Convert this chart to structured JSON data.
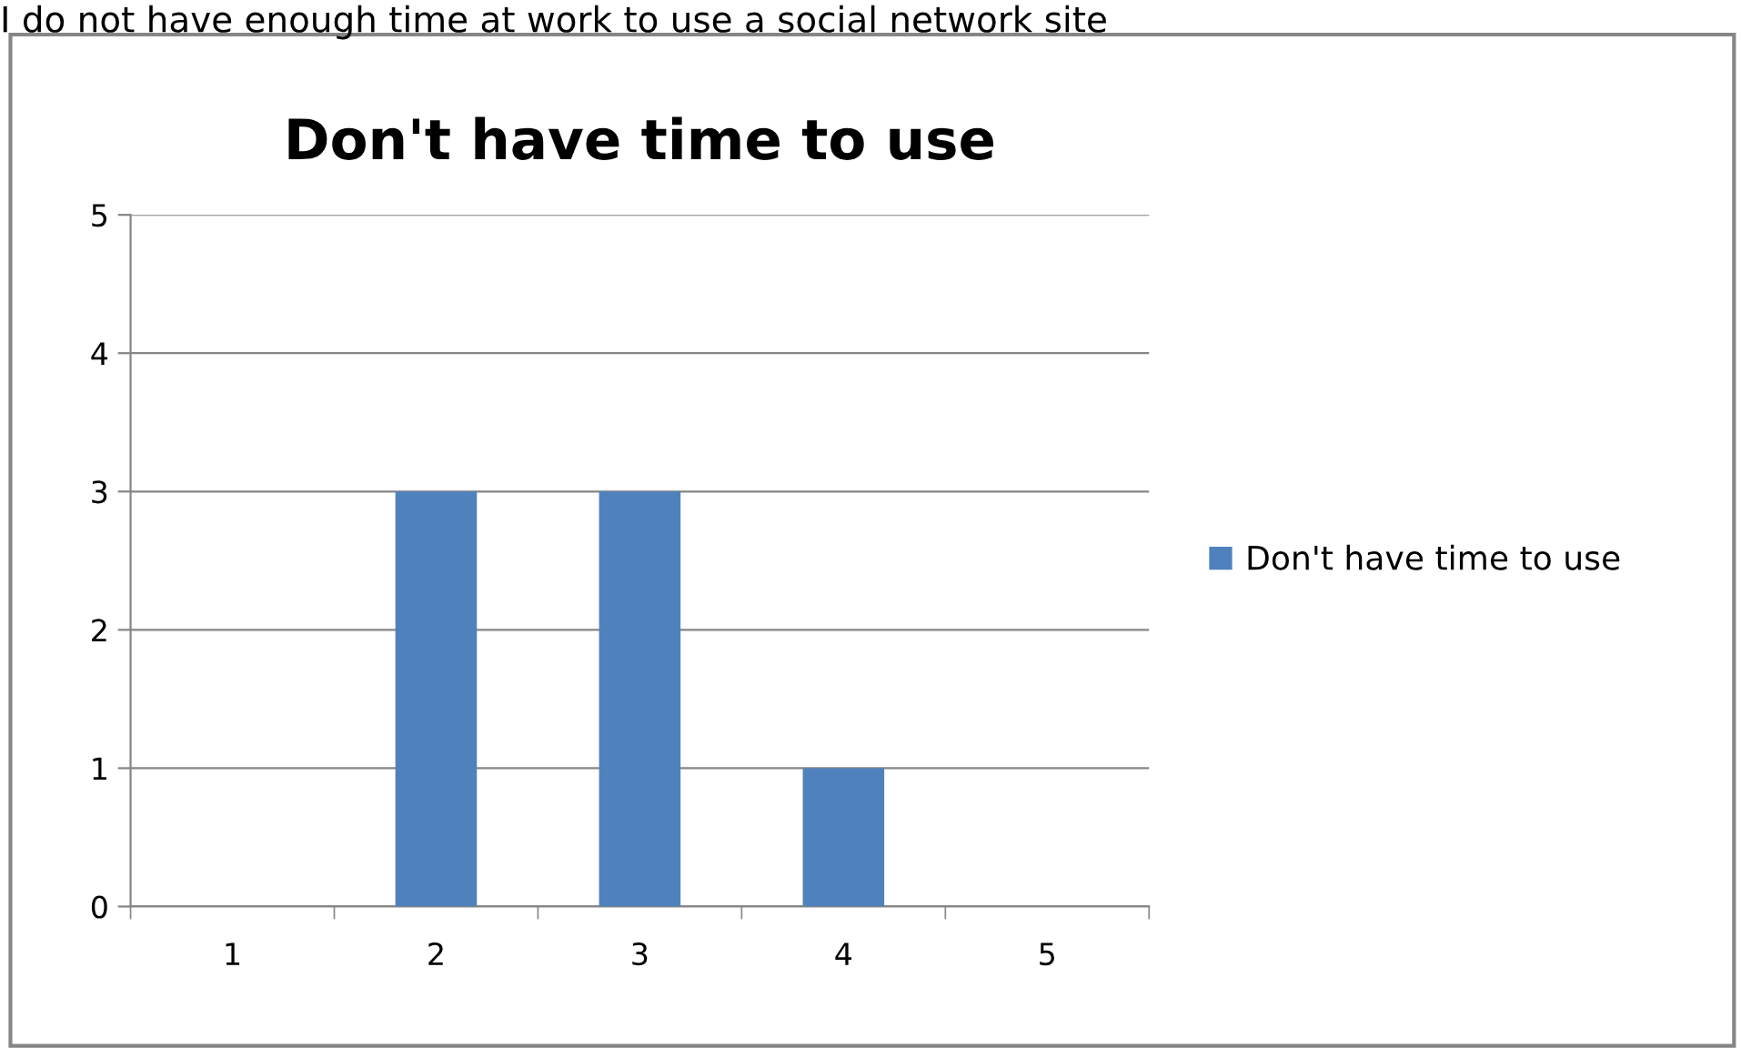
{
  "chart_data": {
    "type": "bar",
    "title": "Don't have time to use",
    "annotations": [
      "I do not have enough time at work to use a social network site"
    ],
    "categories": [
      "1",
      "2",
      "3",
      "4",
      "5"
    ],
    "series": [
      {
        "name": "Don't have time to use",
        "color": "#4f81bd",
        "values": [
          0,
          3,
          3,
          1,
          0
        ]
      }
    ],
    "ylim": [
      0,
      5
    ],
    "yticks": [
      0,
      1,
      2,
      3,
      4,
      5
    ],
    "grid": "y",
    "legend": "right"
  }
}
